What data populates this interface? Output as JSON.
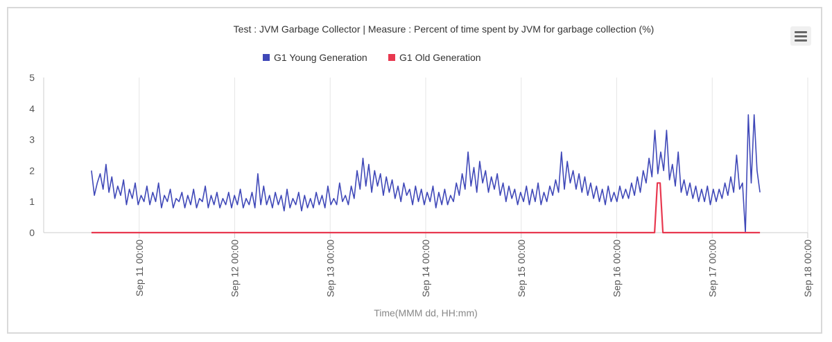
{
  "chart_data": {
    "type": "line",
    "title": "Test : JVM Garbage Collector | Measure : Percent of time spent by JVM for garbage collection (%)",
    "xlabel": "Time(MMM dd, HH:mm)",
    "ylabel": "",
    "ylim": [
      0,
      5
    ],
    "yticks": [
      "0",
      "1",
      "2",
      "3",
      "4",
      "5"
    ],
    "xlim": [
      "2019-09-10 00:00",
      "2019-09-18 00:00"
    ],
    "xticks": [
      "Sep 11 00:00",
      "Sep 12 00:00",
      "Sep 13 00:00",
      "Sep 14 00:00",
      "Sep 15 00:00",
      "Sep 16 00:00",
      "Sep 17 00:00",
      "Sep 18 00:00"
    ],
    "grid": "vertical",
    "legend_position": "top",
    "series": [
      {
        "name": "G1 Young Generation",
        "color": "#3f48b8",
        "x_start": "2019-09-10 12:00",
        "x_end": "2019-09-17 12:00",
        "values": [
          2.0,
          1.2,
          1.6,
          1.9,
          1.4,
          2.2,
          1.3,
          1.8,
          1.1,
          1.5,
          1.2,
          1.7,
          0.9,
          1.4,
          1.1,
          1.6,
          0.9,
          1.2,
          1.0,
          1.5,
          0.9,
          1.3,
          1.0,
          1.6,
          0.8,
          1.2,
          1.0,
          1.4,
          0.8,
          1.1,
          1.0,
          1.3,
          0.8,
          1.2,
          0.9,
          1.4,
          0.8,
          1.1,
          1.0,
          1.5,
          0.8,
          1.2,
          0.9,
          1.3,
          0.8,
          1.1,
          0.9,
          1.3,
          0.8,
          1.2,
          0.9,
          1.4,
          0.8,
          1.1,
          0.9,
          1.3,
          0.8,
          1.9,
          0.9,
          1.5,
          0.9,
          1.2,
          0.8,
          1.3,
          0.9,
          1.2,
          0.7,
          1.4,
          0.8,
          1.1,
          0.9,
          1.3,
          0.7,
          1.2,
          0.8,
          1.1,
          0.8,
          1.3,
          0.9,
          1.2,
          0.8,
          1.5,
          0.9,
          1.1,
          0.9,
          1.6,
          1.0,
          1.2,
          0.9,
          1.5,
          1.1,
          2.0,
          1.4,
          2.4,
          1.5,
          2.2,
          1.3,
          2.0,
          1.5,
          1.9,
          1.2,
          1.8,
          1.3,
          1.7,
          1.1,
          1.5,
          1.0,
          1.6,
          1.2,
          1.4,
          0.9,
          1.5,
          1.0,
          1.4,
          0.9,
          1.3,
          1.0,
          1.5,
          0.8,
          1.3,
          0.9,
          1.4,
          0.9,
          1.2,
          1.0,
          1.6,
          1.2,
          1.9,
          1.4,
          2.6,
          1.5,
          2.1,
          1.3,
          2.3,
          1.6,
          2.0,
          1.3,
          1.8,
          1.4,
          1.9,
          1.2,
          1.6,
          1.0,
          1.5,
          1.1,
          1.4,
          0.9,
          1.3,
          1.0,
          1.5,
          0.9,
          1.4,
          1.0,
          1.6,
          0.9,
          1.3,
          1.0,
          1.5,
          1.2,
          1.7,
          1.3,
          2.6,
          1.4,
          2.3,
          1.6,
          2.0,
          1.4,
          1.9,
          1.3,
          1.8,
          1.2,
          1.6,
          1.1,
          1.5,
          1.0,
          1.4,
          0.9,
          1.5,
          1.0,
          1.3,
          1.0,
          1.5,
          1.1,
          1.4,
          1.1,
          1.6,
          1.2,
          1.8,
          1.3,
          2.0,
          1.6,
          2.4,
          1.8,
          3.3,
          1.9,
          2.6,
          2.0,
          3.3,
          1.7,
          2.2,
          1.5,
          2.6,
          1.3,
          1.7,
          1.2,
          1.6,
          1.1,
          1.5,
          1.0,
          1.4,
          1.0,
          1.5,
          0.9,
          1.4,
          1.0,
          1.4,
          1.1,
          1.6,
          1.2,
          1.8,
          1.3,
          2.5,
          1.4,
          1.6,
          0.0,
          3.8,
          1.6,
          3.8,
          2.0,
          1.3
        ]
      },
      {
        "name": "G1 Old Generation",
        "color": "#e8384f",
        "x_start": "2019-09-10 12:00",
        "x_end": "2019-09-17 12:00",
        "values": [
          0,
          0,
          0,
          0,
          0,
          0,
          0,
          0,
          0,
          0,
          0,
          0,
          0,
          0,
          0,
          0,
          0,
          0,
          0,
          0,
          0,
          0,
          0,
          0,
          0,
          0,
          0,
          0,
          0,
          0,
          0,
          0,
          0,
          0,
          0,
          0,
          0,
          0,
          0,
          0,
          0,
          0,
          0,
          0,
          0,
          0,
          0,
          0,
          0,
          0,
          0,
          0,
          0,
          0,
          0,
          0,
          0,
          0,
          0,
          0,
          0,
          0,
          0,
          0,
          0,
          0,
          0,
          0,
          0,
          0,
          0,
          0,
          0,
          0,
          0,
          0,
          0,
          0,
          0,
          0,
          0,
          0,
          0,
          0,
          0,
          0,
          0,
          0,
          0,
          0,
          0,
          0,
          0,
          0,
          0,
          0,
          0,
          0,
          0,
          0,
          0,
          0,
          0,
          0,
          0,
          0,
          0,
          0,
          0,
          0,
          0,
          0,
          0,
          0,
          0,
          0,
          0,
          0,
          0,
          0,
          0,
          0,
          0,
          0,
          0,
          0,
          0,
          0,
          0,
          0,
          0,
          0,
          0,
          0,
          0,
          0,
          0,
          0,
          0,
          0,
          0,
          0,
          0,
          0,
          0,
          0,
          0,
          0,
          0,
          0,
          0,
          0,
          0,
          0,
          0,
          0,
          0,
          0,
          0,
          0,
          0,
          0,
          0,
          0,
          0,
          0,
          0,
          0,
          0,
          0,
          0,
          0,
          0,
          0,
          0,
          0,
          0,
          0,
          0,
          0,
          0,
          0,
          0,
          0,
          0,
          0,
          0,
          0,
          0,
          0,
          0,
          0,
          0,
          0,
          0,
          0,
          0,
          0,
          0,
          0,
          0,
          0,
          0,
          0,
          1.6,
          1.6,
          0,
          0,
          0,
          0,
          0,
          0,
          0,
          0,
          0,
          0,
          0,
          0,
          0,
          0,
          0,
          0,
          0,
          0,
          0,
          0,
          0,
          0,
          0,
          0,
          0,
          0,
          0,
          0,
          0,
          0,
          0,
          0,
          0,
          0,
          0,
          0
        ]
      }
    ]
  }
}
